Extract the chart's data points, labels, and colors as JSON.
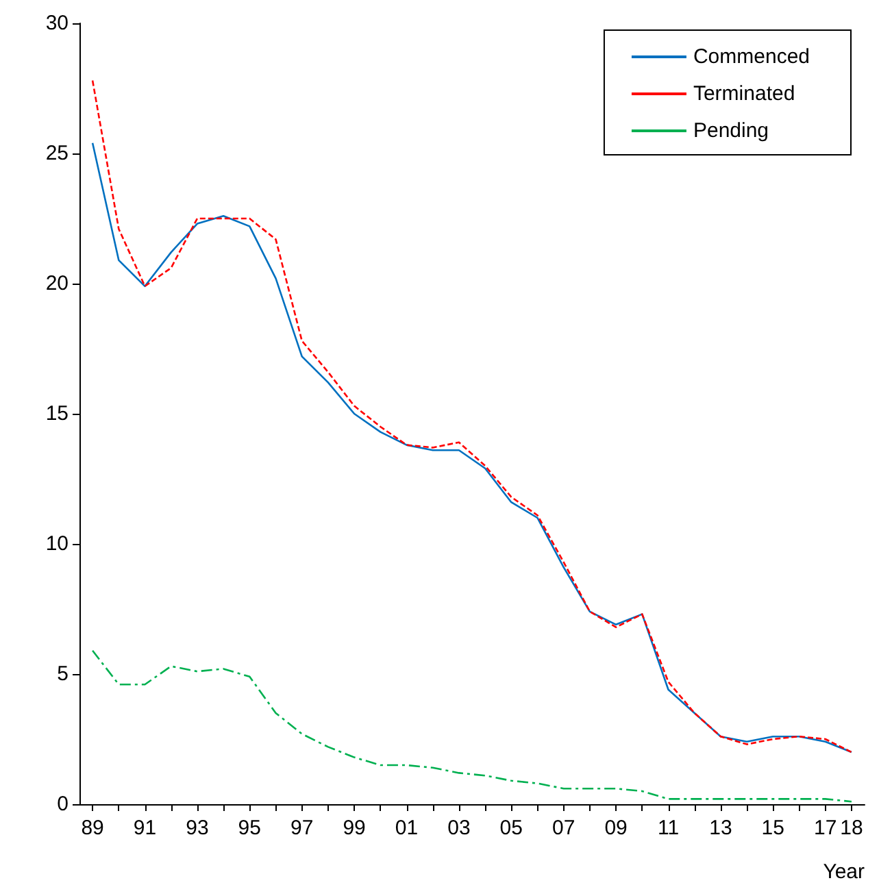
{
  "chart_data": {
    "type": "line",
    "xlabel": "Year",
    "categories": [
      "89",
      null,
      "91",
      null,
      "93",
      null,
      "95",
      null,
      "97",
      null,
      "99",
      null,
      "01",
      null,
      "03",
      null,
      "05",
      null,
      "07",
      null,
      "09",
      null,
      "11",
      null,
      "13",
      null,
      "15",
      null,
      "17",
      "18"
    ],
    "series": [
      {
        "name": "Commenced",
        "color": "#0070c0",
        "line_style": "solid",
        "values": [
          25.4,
          20.9,
          19.9,
          21.2,
          22.3,
          22.6,
          22.2,
          20.2,
          17.2,
          16.2,
          15.0,
          14.3,
          13.8,
          13.6,
          13.6,
          12.9,
          11.6,
          11.0,
          9.1,
          7.4,
          6.9,
          7.3,
          4.4,
          3.5,
          2.6,
          2.4,
          2.6,
          2.6,
          2.4,
          2.0
        ]
      },
      {
        "name": "Terminated",
        "color": "#ff0000",
        "line_style": "dashed",
        "values": [
          27.8,
          22.1,
          19.9,
          20.6,
          22.5,
          22.5,
          22.5,
          21.7,
          17.8,
          16.6,
          15.3,
          14.5,
          13.8,
          13.7,
          13.9,
          13.0,
          11.8,
          11.1,
          9.3,
          7.4,
          6.8,
          7.3,
          4.7,
          3.5,
          2.6,
          2.3,
          2.5,
          2.6,
          2.5,
          2.0
        ]
      },
      {
        "name": "Pending",
        "color": "#00b050",
        "line_style": "dashdot",
        "values": [
          5.9,
          4.6,
          4.6,
          5.3,
          5.1,
          5.2,
          4.9,
          3.5,
          2.7,
          2.2,
          1.8,
          1.5,
          1.5,
          1.4,
          1.2,
          1.1,
          0.9,
          0.8,
          0.6,
          0.6,
          0.6,
          0.5,
          0.2,
          0.2,
          0.2,
          0.2,
          0.2,
          0.2,
          0.2,
          0.1
        ]
      }
    ],
    "ylim": [
      0,
      30
    ],
    "yticks": [
      0,
      5,
      10,
      15,
      20,
      25,
      30
    ],
    "grid": false,
    "legend": "top right",
    "marker": "none"
  }
}
